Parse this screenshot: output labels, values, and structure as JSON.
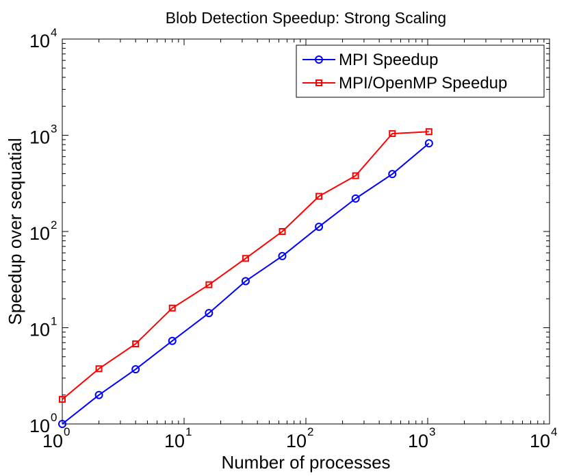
{
  "chart_data": {
    "type": "line",
    "title": "Blob Detection Speedup: Strong Scaling",
    "xlabel": "Number of processes",
    "ylabel": "Speedup over sequatial",
    "xscale": "log",
    "yscale": "log",
    "xlim": [
      1,
      10000
    ],
    "ylim": [
      1,
      10000
    ],
    "x_ticks": [
      {
        "base": "10",
        "exp": "0",
        "value": 1
      },
      {
        "base": "10",
        "exp": "1",
        "value": 10
      },
      {
        "base": "10",
        "exp": "2",
        "value": 100
      },
      {
        "base": "10",
        "exp": "3",
        "value": 1000
      },
      {
        "base": "10",
        "exp": "4",
        "value": 10000
      }
    ],
    "y_ticks": [
      {
        "base": "10",
        "exp": "0",
        "value": 1
      },
      {
        "base": "10",
        "exp": "1",
        "value": 10
      },
      {
        "base": "10",
        "exp": "2",
        "value": 100
      },
      {
        "base": "10",
        "exp": "3",
        "value": 1000
      },
      {
        "base": "10",
        "exp": "4",
        "value": 10000
      }
    ],
    "grid": false,
    "legend": {
      "placement": "top-right"
    },
    "x": [
      1,
      2,
      4,
      8,
      16,
      32,
      64,
      128,
      256,
      512,
      1024
    ],
    "series": [
      {
        "name": "MPI Speedup",
        "color": "#0000ff",
        "marker": "circle",
        "values": [
          1.0,
          2.0,
          3.7,
          7.3,
          14.2,
          30.5,
          55.5,
          112,
          220,
          395,
          825
        ]
      },
      {
        "name": "MPI/OpenMP Speedup",
        "color": "#ff0000",
        "marker": "square",
        "values": [
          1.8,
          3.75,
          6.8,
          16.0,
          28.0,
          52.5,
          100,
          232,
          380,
          1040,
          1090
        ]
      }
    ]
  }
}
